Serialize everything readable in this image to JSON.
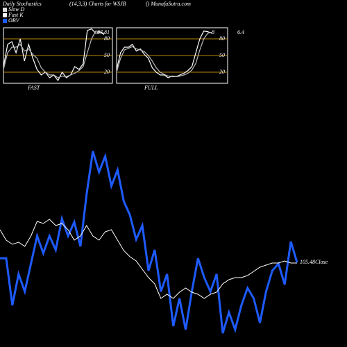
{
  "header": {
    "title": "Daily Stochastics",
    "subtitle": "(14,3,3) Charts for WSJB",
    "source": "() MunafaSutra.com"
  },
  "legend": [
    {
      "name": "Slow D",
      "color": "#dddddd"
    },
    {
      "name": "Fast K",
      "color": "#ffffff"
    },
    {
      "name": "OBV",
      "color": "#1e5bff"
    }
  ],
  "chart_data": [
    {
      "type": "line",
      "title": "FAST",
      "annotation": "87.81",
      "ylim": [
        0,
        100
      ],
      "yticks": [
        80,
        50,
        20
      ],
      "grid": true,
      "series": [
        {
          "name": "Fast K",
          "color": "#ffffff",
          "values": [
            30,
            70,
            75,
            55,
            80,
            40,
            70,
            45,
            25,
            15,
            20,
            10,
            15,
            5,
            20,
            10,
            15,
            30,
            25,
            35,
            95,
            98,
            90,
            92,
            88
          ]
        },
        {
          "name": "Slow D",
          "color": "#bbbbbb",
          "values": [
            25,
            55,
            65,
            65,
            70,
            58,
            62,
            52,
            45,
            28,
            20,
            15,
            15,
            10,
            13,
            12,
            15,
            18,
            23,
            30,
            55,
            80,
            94,
            93,
            90
          ]
        }
      ]
    },
    {
      "type": "line",
      "title": "FULL",
      "annotation": "8",
      "side_label": "6.4",
      "ylim": [
        0,
        100
      ],
      "yticks": [
        80,
        50,
        20
      ],
      "grid": true,
      "series": [
        {
          "name": "Fast K",
          "color": "#ffffff",
          "values": [
            25,
            55,
            65,
            65,
            70,
            58,
            62,
            52,
            45,
            28,
            20,
            15,
            15,
            10,
            13,
            12,
            15,
            18,
            23,
            30,
            55,
            80,
            94,
            93,
            90
          ]
        },
        {
          "name": "Slow D",
          "color": "#bbbbbb",
          "values": [
            20,
            45,
            60,
            63,
            66,
            62,
            60,
            57,
            50,
            40,
            28,
            20,
            16,
            13,
            12,
            12,
            13,
            15,
            18,
            24,
            36,
            60,
            80,
            90,
            92
          ]
        }
      ]
    },
    {
      "type": "line",
      "annotation": "105.48Close",
      "ylim": [
        0,
        100
      ],
      "series": [
        {
          "name": "OBV",
          "color": "#1e5bff",
          "values": [
            39.3,
            39.3,
            16.7,
            31.7,
            23.3,
            36.7,
            50,
            41.7,
            50,
            43.3,
            58.3,
            50,
            56.7,
            45,
            70,
            90.7,
            80.7,
            88.3,
            74,
            81.7,
            66.7,
            60,
            48.3,
            55,
            33.3,
            43.3,
            23.3,
            31.7,
            6.7,
            20,
            5,
            23.3,
            39.3,
            30,
            23.3,
            31.7,
            3.3,
            13.3,
            5,
            16.7,
            25,
            20,
            8.3,
            23.3,
            33.3,
            36.7,
            26.7,
            47.3,
            37.3
          ]
        },
        {
          "color": "#ffffff",
          "values": [
            53,
            48,
            46,
            47,
            45,
            50,
            57,
            56,
            58,
            55,
            56,
            53,
            48,
            50,
            55,
            50,
            48,
            52,
            53,
            48,
            43,
            40,
            38,
            34,
            30,
            27,
            20,
            22,
            20,
            23,
            25,
            23,
            22,
            20,
            22,
            23,
            27,
            29,
            30,
            30,
            31,
            33,
            35,
            36,
            37,
            37,
            38,
            37,
            37
          ]
        }
      ]
    }
  ]
}
